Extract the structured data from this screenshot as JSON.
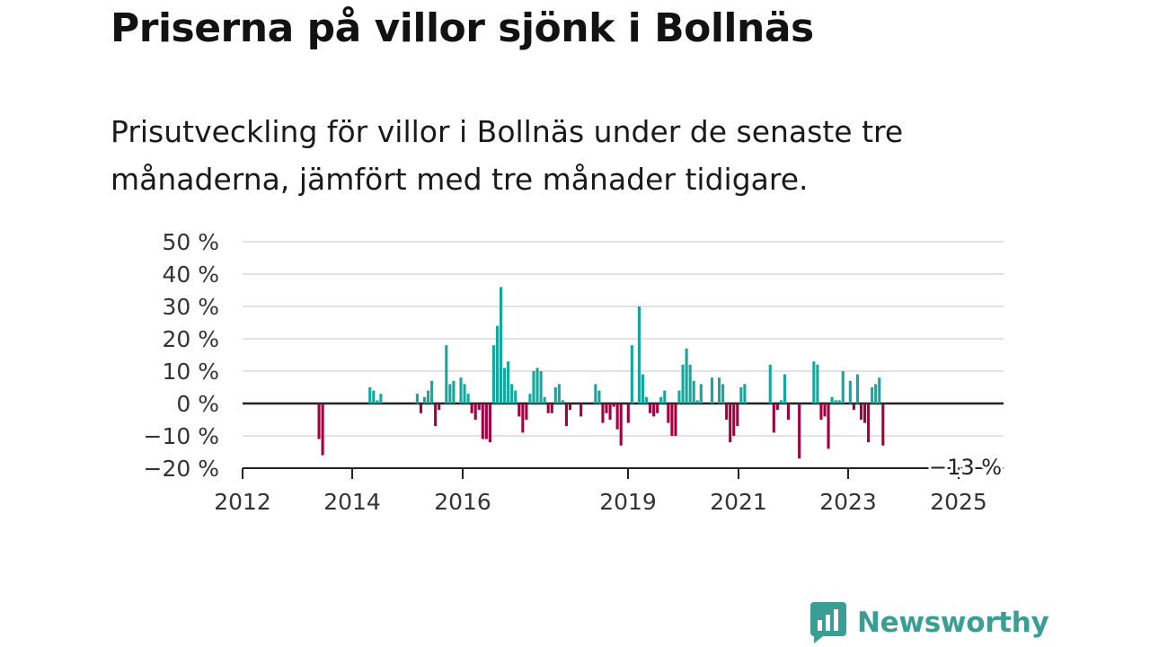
{
  "title": "Priserna på villor sjönk i Bollnäs",
  "subtitle": "Prisutveckling för villor i Bollnäs under de senaste tre månaderna, jämfört med tre månader tidigare.",
  "brand": {
    "name": "Newsworthy",
    "color": "#3a9e94"
  },
  "colors": {
    "positive": "#13a89e",
    "negative": "#a3003f",
    "grid": "#d9d9d9",
    "axis": "#222222"
  },
  "chart_data": {
    "type": "bar",
    "ylim": [
      -20,
      50
    ],
    "yticks": [
      {
        "value": 50,
        "label": "50 %"
      },
      {
        "value": 40,
        "label": "40 %"
      },
      {
        "value": 30,
        "label": "30 %"
      },
      {
        "value": 20,
        "label": "20 %"
      },
      {
        "value": 10,
        "label": "10 %"
      },
      {
        "value": 0,
        "label": "0 %"
      },
      {
        "value": -10,
        "label": "−10 %"
      },
      {
        "value": -20,
        "label": "−20 %"
      }
    ],
    "xticks": [
      "2012",
      "2014",
      "2016",
      "2019",
      "2021",
      "2023",
      "2025"
    ],
    "last_value_label": "−13 %",
    "values": [
      null,
      null,
      null,
      null,
      null,
      null,
      null,
      null,
      null,
      null,
      -11,
      -16,
      null,
      null,
      null,
      null,
      null,
      null,
      null,
      null,
      null,
      null,
      null,
      null,
      5,
      4,
      1,
      3,
      null,
      null,
      null,
      null,
      null,
      null,
      null,
      null,
      null,
      3,
      -3,
      2,
      4,
      7,
      -7,
      -2,
      null,
      18,
      6,
      7,
      null,
      8,
      6,
      3,
      -3,
      -5,
      -2,
      -11,
      -11,
      -12,
      18,
      24,
      36,
      11,
      13,
      6,
      4,
      -4,
      -9,
      -5,
      3,
      10,
      11,
      10,
      2,
      -3,
      -3,
      5,
      6,
      1,
      -7,
      -2,
      null,
      null,
      -4,
      null,
      null,
      null,
      6,
      4,
      -6,
      -3,
      -5,
      -1,
      -8,
      -13,
      null,
      -6,
      18,
      null,
      30,
      9,
      2,
      -3,
      -4,
      -3,
      2,
      4,
      -6,
      -10,
      -10,
      4,
      12,
      17,
      12,
      7,
      1,
      6,
      null,
      null,
      8,
      null,
      8,
      6,
      -5,
      -12,
      -10,
      -7,
      5,
      6,
      null,
      null,
      null,
      null,
      null,
      null,
      12,
      -9,
      -2,
      1,
      9,
      -5,
      null,
      null,
      -17,
      null,
      null,
      null,
      13,
      12,
      -5,
      -4,
      -14,
      2,
      1,
      1,
      10,
      null,
      7,
      -2,
      9,
      -5,
      -6,
      -12,
      5,
      6,
      8,
      -13
    ]
  }
}
